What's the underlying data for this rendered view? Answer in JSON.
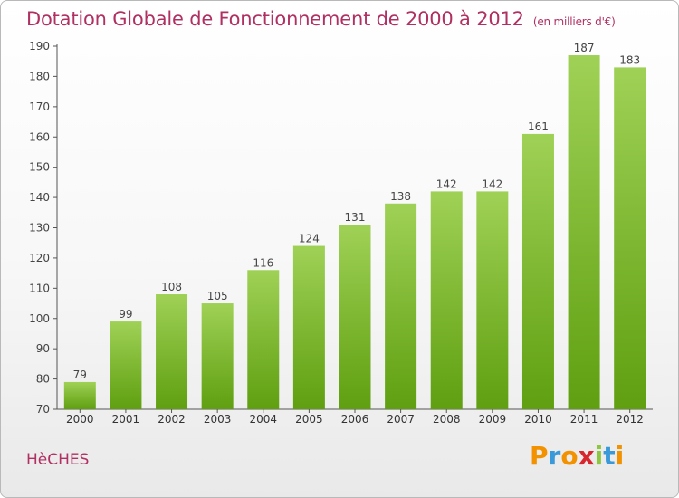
{
  "title": "Dotation Globale de Fonctionnement de 2000 à 2012",
  "subtitle": "(en milliers d'€)",
  "commune": "HèCHES",
  "logo": {
    "letters": [
      "P",
      "r",
      "o",
      "x",
      "i",
      "t",
      "i"
    ],
    "colors": [
      "#f39200",
      "#3a9ad9",
      "#f39200",
      "#d8262f",
      "#8dc63f",
      "#3a9ad9",
      "#f39200"
    ]
  },
  "chart_data": {
    "type": "bar",
    "categories": [
      "2000",
      "2001",
      "2002",
      "2003",
      "2004",
      "2005",
      "2006",
      "2007",
      "2008",
      "2009",
      "2010",
      "2011",
      "2012"
    ],
    "values": [
      79,
      99,
      108,
      105,
      116,
      124,
      131,
      138,
      142,
      142,
      161,
      187,
      183
    ],
    "ylim": [
      70,
      190
    ],
    "yticks": [
      70,
      80,
      90,
      100,
      110,
      120,
      130,
      140,
      150,
      160,
      170,
      180,
      190
    ],
    "grid": false,
    "bar_color_top": "#9fd156",
    "bar_color_bottom": "#5f9f10"
  }
}
